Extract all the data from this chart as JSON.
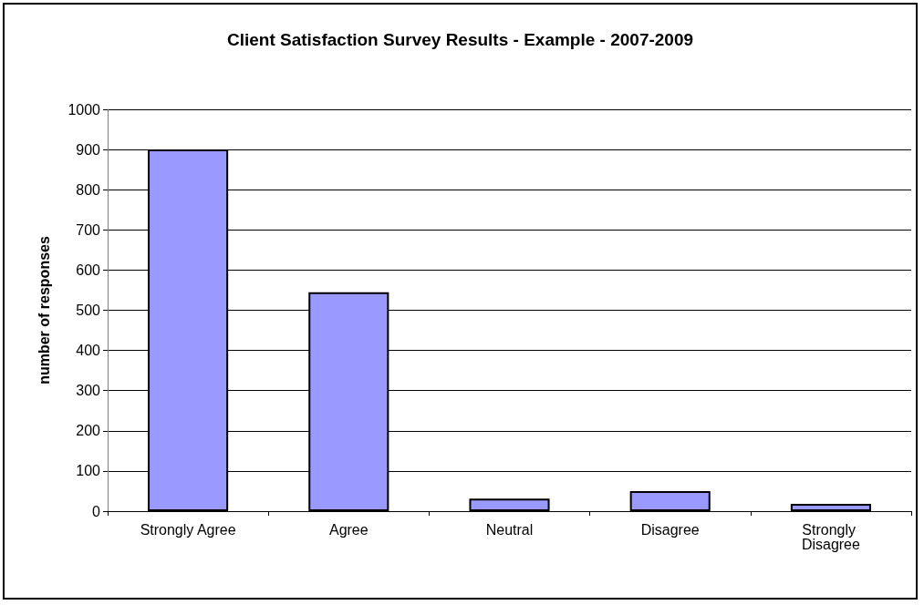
{
  "chart_data": {
    "type": "bar",
    "title": "Client Satisfaction Survey Results - Example - 2007-2009",
    "ylabel": "number of responses",
    "categories": [
      "Strongly Agree",
      "Agree",
      "Neutral",
      "Disagree",
      "Strongly Disagree"
    ],
    "values": [
      900,
      545,
      31,
      50,
      18
    ],
    "color": "#9999ff",
    "ylim": [
      0,
      1000
    ],
    "yticks": [
      0,
      100,
      200,
      300,
      400,
      500,
      600,
      700,
      800,
      900,
      1000
    ],
    "grid": "y"
  }
}
